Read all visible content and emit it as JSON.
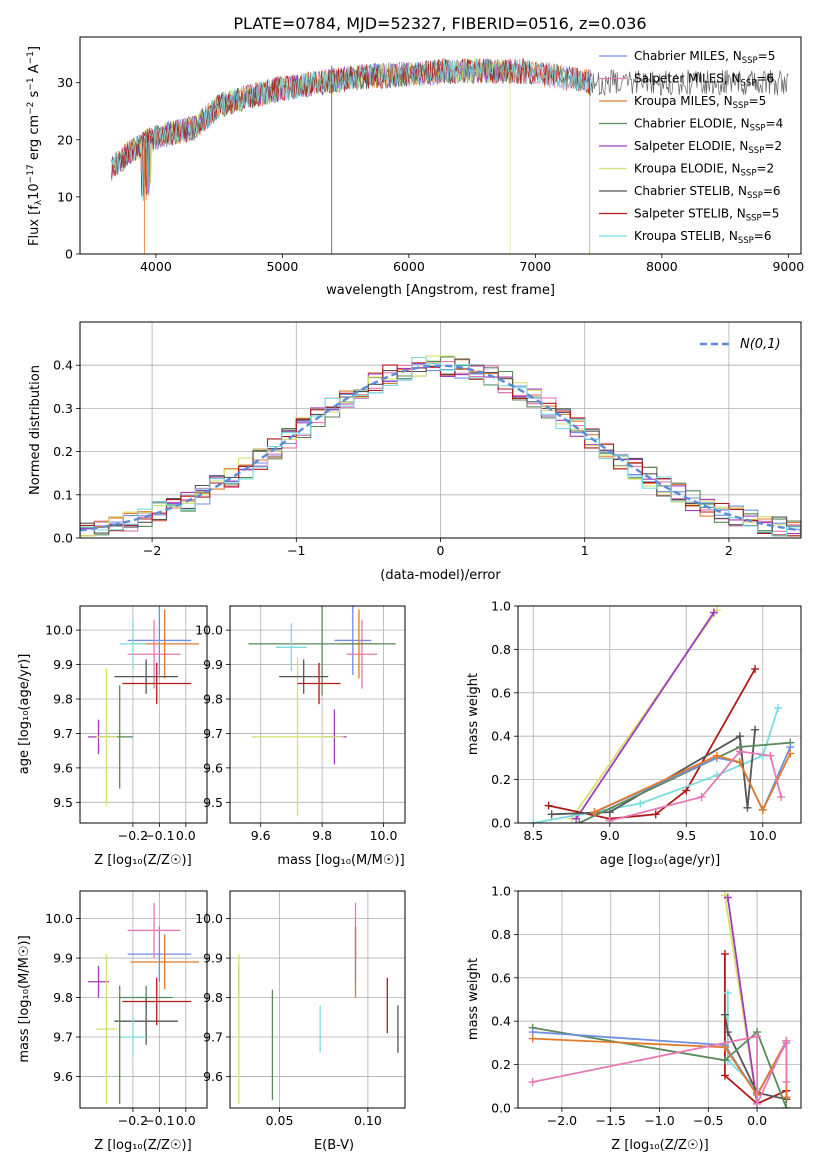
{
  "figure": {
    "title": "PLATE=0784, MJD=52327, FIBERID=0516, z=0.036",
    "colors": {
      "chabrier_miles": "#6f8fe0",
      "salpeter_miles": "#e879b5",
      "kroupa_miles": "#e07b2e",
      "chabrier_elodie": "#5a8a5a",
      "salpeter_elodie": "#a23cbc",
      "kroupa_elodie": "#d6e06e",
      "chabrier_stelib": "#555555",
      "salpeter_stelib": "#b01a1a",
      "kroupa_stelib": "#79dde0",
      "normal_curve": "#5b8bd9"
    }
  },
  "chart_data": [
    {
      "id": "spectrum",
      "type": "line",
      "xlabel": "wavelength [Angstrom, rest frame]",
      "ylabel": "Flux [f_λ10^-17 erg cm^-2 s^-1 A^-1]",
      "xlim": [
        3400,
        9100
      ],
      "ylim": [
        0,
        38
      ],
      "xticks": [
        4000,
        5000,
        6000,
        7000,
        8000,
        9000
      ],
      "yticks": [
        0,
        10,
        20,
        30
      ],
      "grid": false,
      "legend_position": "right",
      "continuum": {
        "x": [
          3650,
          3800,
          3950,
          4100,
          4300,
          4500,
          4800,
          5000,
          5300,
          5600,
          6000,
          6300,
          6600,
          6900,
          7200,
          7450
        ],
        "y": [
          15,
          18,
          20,
          21,
          22,
          26,
          28,
          29,
          30,
          31,
          31.5,
          32,
          32,
          32,
          31,
          30
        ]
      },
      "series": [
        {
          "name": "Chabrier MILES, N_SSP=5",
          "legend_main": "Chabrier MILES, N",
          "legend_sub": "SSP",
          "legend_tail": "=5",
          "color_key": "chabrier_miles",
          "xmax": 7450,
          "drop_at": null
        },
        {
          "name": "Salpeter MILES, N_SSP=6",
          "legend_main": "Salpeter MILES, N",
          "legend_sub": "SSP",
          "legend_tail": "=6",
          "color_key": "salpeter_miles",
          "xmax": 7450,
          "drop_at": null
        },
        {
          "name": "Kroupa MILES, N_SSP=5",
          "legend_main": "Kroupa MILES, N",
          "legend_sub": "SSP",
          "legend_tail": "=5",
          "color_key": "kroupa_miles",
          "xmax": 7430,
          "drop_at": 7430
        },
        {
          "name": "Chabrier ELODIE, N_SSP=4",
          "legend_main": "Chabrier ELODIE, N",
          "legend_sub": "SSP",
          "legend_tail": "=4",
          "color_key": "chabrier_elodie",
          "xmax": 6800,
          "drop_at": null
        },
        {
          "name": "Salpeter ELODIE, N_SSP=2",
          "legend_main": "Salpeter ELODIE, N",
          "legend_sub": "SSP",
          "legend_tail": "=2",
          "color_key": "salpeter_elodie",
          "xmax": 6800,
          "drop_at": null
        },
        {
          "name": "Kroupa ELODIE, N_SSP=2",
          "legend_main": "Kroupa ELODIE, N",
          "legend_sub": "SSP",
          "legend_tail": "=2",
          "color_key": "kroupa_elodie",
          "xmax": 6800,
          "drop_at": 6800
        },
        {
          "name": "Chabrier STELIB, N_SSP=6",
          "legend_main": "Chabrier STELIB, N",
          "legend_sub": "SSP",
          "legend_tail": "=6",
          "color_key": "chabrier_stelib",
          "xmax": 9000,
          "drop_at": null
        },
        {
          "name": "Salpeter STELIB, N_SSP=5",
          "legend_main": "Salpeter STELIB, N",
          "legend_sub": "SSP",
          "legend_tail": "=5",
          "color_key": "salpeter_stelib",
          "xmax": 7450,
          "drop_at": null
        },
        {
          "name": "Kroupa STELIB, N_SSP=6",
          "legend_main": "Kroupa STELIB, N",
          "legend_sub": "SSP",
          "legend_tail": "=6",
          "color_key": "kroupa_stelib",
          "xmax": 7450,
          "drop_at": null
        }
      ]
    },
    {
      "id": "residuals",
      "type": "histogram",
      "xlabel": "(data-model)/error",
      "ylabel": "Normed distribution",
      "xlim": [
        -2.5,
        2.5
      ],
      "ylim": [
        0,
        0.5
      ],
      "xticks": [
        -2,
        -1,
        0,
        1,
        2
      ],
      "yticks": [
        0.0,
        0.1,
        0.2,
        0.3,
        0.4
      ],
      "grid": true,
      "legend_position": "top-right",
      "bin_width": 0.1,
      "normal_curve_label": "N(0,1)"
    },
    {
      "id": "age_vs_Z",
      "type": "scatter",
      "xlabel": "Z [log10(Z/Z☉)]",
      "ylabel": "age [log10(age/yr)]",
      "xlim": [
        -0.4,
        0.08
      ],
      "ylim": [
        9.44,
        10.07
      ],
      "xticks": [
        -0.2,
        -0.1,
        0.0
      ],
      "yticks": [
        9.5,
        9.6,
        9.7,
        9.8,
        9.9,
        10.0
      ],
      "grid": true,
      "points": [
        {
          "color_key": "chabrier_miles",
          "x": -0.1,
          "xerr": 0.12,
          "y": 9.97,
          "yerr": 0.1
        },
        {
          "color_key": "salpeter_miles",
          "x": -0.12,
          "xerr": 0.1,
          "y": 9.93,
          "yerr": 0.1
        },
        {
          "color_key": "kroupa_miles",
          "x": -0.08,
          "xerr": 0.13,
          "y": 9.96,
          "yerr": 0.1
        },
        {
          "color_key": "chabrier_elodie",
          "x": -0.25,
          "xerr": 0.05,
          "y": 9.69,
          "yerr": 0.15
        },
        {
          "color_key": "salpeter_elodie",
          "x": -0.33,
          "xerr": 0.04,
          "y": 9.69,
          "yerr": 0.05
        },
        {
          "color_key": "kroupa_elodie",
          "x": -0.3,
          "xerr": 0.04,
          "y": 9.69,
          "yerr": 0.2
        },
        {
          "color_key": "chabrier_stelib",
          "x": -0.15,
          "xerr": 0.12,
          "y": 9.865,
          "yerr": 0.05
        },
        {
          "color_key": "salpeter_stelib",
          "x": -0.11,
          "xerr": 0.13,
          "y": 9.845,
          "yerr": 0.06
        },
        {
          "color_key": "kroupa_stelib",
          "x": -0.2,
          "xerr": 0.05,
          "y": 9.96,
          "yerr": 0.07
        }
      ]
    },
    {
      "id": "age_vs_mass",
      "type": "scatter",
      "xlabel": "mass [log10(M/M☉)]",
      "ylabel": "",
      "xlim": [
        9.5,
        10.07
      ],
      "ylim": [
        9.44,
        10.07
      ],
      "xticks": [
        9.6,
        9.8,
        10.0
      ],
      "yticks": [
        9.5,
        9.6,
        9.7,
        9.8,
        9.9,
        10.0
      ],
      "grid": true,
      "points": [
        {
          "color_key": "chabrier_miles",
          "x": 9.9,
          "xerr": 0.06,
          "y": 9.97,
          "yerr": 0.1
        },
        {
          "color_key": "salpeter_miles",
          "x": 9.93,
          "xerr": 0.05,
          "y": 9.93,
          "yerr": 0.1
        },
        {
          "color_key": "kroupa_miles",
          "x": 9.92,
          "xerr": 0.06,
          "y": 9.96,
          "yerr": 0.1
        },
        {
          "color_key": "chabrier_elodie",
          "x": 9.8,
          "xerr": 0.24,
          "y": 9.96,
          "yerr": 0.15
        },
        {
          "color_key": "salpeter_elodie",
          "x": 9.84,
          "xerr": 0.04,
          "y": 9.69,
          "yerr": 0.08
        },
        {
          "color_key": "kroupa_elodie",
          "x": 9.72,
          "xerr": 0.15,
          "y": 9.69,
          "yerr": 0.23
        },
        {
          "color_key": "chabrier_stelib",
          "x": 9.74,
          "xerr": 0.08,
          "y": 9.865,
          "yerr": 0.05
        },
        {
          "color_key": "salpeter_stelib",
          "x": 9.79,
          "xerr": 0.07,
          "y": 9.845,
          "yerr": 0.06
        },
        {
          "color_key": "kroupa_stelib",
          "x": 9.7,
          "xerr": 0.05,
          "y": 9.95,
          "yerr": 0.07
        }
      ]
    },
    {
      "id": "weight_vs_age",
      "type": "line",
      "xlabel": "age [log10(age/yr)]",
      "ylabel": "mass weight",
      "xlim": [
        8.4,
        10.25
      ],
      "ylim": [
        0,
        1
      ],
      "xticks": [
        8.5,
        9.0,
        9.5,
        10.0
      ],
      "yticks": [
        0.0,
        0.2,
        0.4,
        0.6,
        0.8,
        1.0
      ],
      "grid": true,
      "series": [
        {
          "color_key": "kroupa_elodie",
          "x": [
            8.75,
            9.7
          ],
          "y": [
            0.02,
            0.98
          ]
        },
        {
          "color_key": "salpeter_elodie",
          "x": [
            8.78,
            9.68
          ],
          "y": [
            0.02,
            0.97
          ]
        },
        {
          "color_key": "salpeter_stelib",
          "x": [
            8.6,
            9.0,
            9.3,
            9.5,
            9.95
          ],
          "y": [
            0.08,
            0.02,
            0.04,
            0.15,
            0.71
          ]
        },
        {
          "color_key": "kroupa_stelib",
          "x": [
            8.5,
            9.2,
            9.7,
            10.0,
            10.1
          ],
          "y": [
            0.0,
            0.09,
            0.22,
            0.31,
            0.53
          ]
        },
        {
          "color_key": "chabrier_stelib",
          "x": [
            8.62,
            9.0,
            9.85,
            9.9,
            9.95
          ],
          "y": [
            0.04,
            0.05,
            0.4,
            0.07,
            0.43
          ]
        },
        {
          "color_key": "chabrier_elodie",
          "x": [
            8.8,
            9.85,
            10.18
          ],
          "y": [
            0.0,
            0.35,
            0.37
          ]
        },
        {
          "color_key": "chabrier_miles",
          "x": [
            8.9,
            9.7,
            9.85,
            10.0,
            10.18
          ],
          "y": [
            0.05,
            0.3,
            0.28,
            0.06,
            0.35
          ]
        },
        {
          "color_key": "kroupa_miles",
          "x": [
            8.9,
            9.7,
            9.85,
            10.0,
            10.18
          ],
          "y": [
            0.05,
            0.31,
            0.28,
            0.06,
            0.32
          ]
        },
        {
          "color_key": "salpeter_miles",
          "x": [
            9.0,
            9.6,
            9.85,
            10.05,
            10.12
          ],
          "y": [
            0.01,
            0.12,
            0.33,
            0.31,
            0.12
          ]
        }
      ]
    },
    {
      "id": "mass_vs_Z",
      "type": "scatter",
      "xlabel": "Z [log10(Z/Z☉)]",
      "ylabel": "mass [log10(M/M☉)]",
      "xlim": [
        -0.4,
        0.08
      ],
      "ylim": [
        9.52,
        10.07
      ],
      "xticks": [
        -0.2,
        -0.1,
        0.0
      ],
      "yticks": [
        9.6,
        9.7,
        9.8,
        9.9,
        10.0
      ],
      "grid": true,
      "points": [
        {
          "color_key": "chabrier_miles",
          "x": -0.1,
          "xerr": 0.12,
          "y": 9.91,
          "yerr": 0.07
        },
        {
          "color_key": "salpeter_miles",
          "x": -0.12,
          "xerr": 0.1,
          "y": 9.97,
          "yerr": 0.07
        },
        {
          "color_key": "kroupa_miles",
          "x": -0.08,
          "xerr": 0.13,
          "y": 9.89,
          "yerr": 0.07
        },
        {
          "color_key": "chabrier_elodie",
          "x": -0.15,
          "xerr": 0.1,
          "y": 9.8,
          "yerr": 0.03
        },
        {
          "color_key": "salpeter_elodie",
          "x": -0.33,
          "xerr": 0.04,
          "y": 9.84,
          "yerr": 0.04
        },
        {
          "color_key": "kroupa_elodie",
          "x": -0.3,
          "xerr": 0.04,
          "y": 9.72,
          "yerr": 0.19
        },
        {
          "color_key": "chabrier_stelib",
          "x": -0.15,
          "xerr": 0.12,
          "y": 9.74,
          "yerr": 0.06
        },
        {
          "color_key": "salpeter_stelib",
          "x": -0.11,
          "xerr": 0.13,
          "y": 9.79,
          "yerr": 0.06
        },
        {
          "color_key": "kroupa_stelib",
          "x": -0.2,
          "xerr": 0.05,
          "y": 9.7,
          "yerr": 0.05
        },
        {
          "color_key": "chabrier_elodie",
          "x": -0.25,
          "xerr": 0.0,
          "y": 9.68,
          "yerr": 0.15
        }
      ]
    },
    {
      "id": "mass_vs_ebv",
      "type": "scatter",
      "xlabel": "E(B-V)",
      "ylabel": "",
      "xlim": [
        0.022,
        0.121
      ],
      "ylim": [
        9.52,
        10.07
      ],
      "xticks": [
        0.05,
        0.1
      ],
      "yticks": [
        9.6,
        9.7,
        9.8,
        9.9,
        10.0
      ],
      "grid": true,
      "points": [
        {
          "color_key": "chabrier_miles",
          "x": 0.093,
          "xerr": 0.0,
          "y": 9.91,
          "yerr": 0.07
        },
        {
          "color_key": "salpeter_miles",
          "x": 0.093,
          "xerr": 0.0,
          "y": 9.97,
          "yerr": 0.07
        },
        {
          "color_key": "kroupa_miles",
          "x": 0.093,
          "xerr": 0.0,
          "y": 9.89,
          "yerr": 0.09
        },
        {
          "color_key": "chabrier_elodie",
          "x": 0.046,
          "xerr": 0.0,
          "y": 9.68,
          "yerr": 0.14
        },
        {
          "color_key": "salpeter_elodie",
          "x": 0.027,
          "xerr": 0.0,
          "y": 9.84,
          "yerr": 0.04
        },
        {
          "color_key": "kroupa_elodie",
          "x": 0.027,
          "xerr": 0.0,
          "y": 9.72,
          "yerr": 0.19
        },
        {
          "color_key": "chabrier_stelib",
          "x": 0.117,
          "xerr": 0.0,
          "y": 9.72,
          "yerr": 0.06
        },
        {
          "color_key": "salpeter_stelib",
          "x": 0.111,
          "xerr": 0.0,
          "y": 9.78,
          "yerr": 0.07
        },
        {
          "color_key": "kroupa_stelib",
          "x": 0.073,
          "xerr": 0.0,
          "y": 9.72,
          "yerr": 0.06
        }
      ]
    },
    {
      "id": "weight_vs_Z",
      "type": "line",
      "xlabel": "Z [log10(Z/Z☉)]",
      "ylabel": "mass weight",
      "xlim": [
        -2.45,
        0.45
      ],
      "ylim": [
        0,
        1
      ],
      "xticks": [
        -2.0,
        -1.5,
        -1.0,
        -0.5,
        0.0
      ],
      "yticks": [
        0.0,
        0.2,
        0.4,
        0.6,
        0.8,
        1.0
      ],
      "grid": true,
      "series": [
        {
          "color_key": "kroupa_elodie",
          "x": [
            -0.33,
            0.0
          ],
          "y": [
            0.98,
            0.02
          ]
        },
        {
          "color_key": "salpeter_elodie",
          "x": [
            -0.3,
            0.0
          ],
          "y": [
            0.97,
            0.02
          ]
        },
        {
          "color_key": "salpeter_stelib",
          "x": [
            -0.33,
            -0.33,
            0.0,
            0.3,
            0.3
          ],
          "y": [
            0.71,
            0.15,
            0.02,
            0.08,
            0.04
          ]
        },
        {
          "color_key": "kroupa_stelib",
          "x": [
            -0.3,
            -0.3,
            0.0,
            0.0
          ],
          "y": [
            0.53,
            0.22,
            0.09,
            0.0
          ]
        },
        {
          "color_key": "chabrier_stelib",
          "x": [
            -0.33,
            -0.3,
            0.0,
            0.3,
            0.3
          ],
          "y": [
            0.43,
            0.35,
            0.07,
            0.04,
            0.05
          ]
        },
        {
          "color_key": "chabrier_elodie",
          "x": [
            -2.3,
            -0.33,
            0.0,
            0.3
          ],
          "y": [
            0.37,
            0.22,
            0.35,
            0.0
          ]
        },
        {
          "color_key": "chabrier_miles",
          "x": [
            -2.3,
            -0.33,
            0.0,
            0.3
          ],
          "y": [
            0.35,
            0.29,
            0.06,
            0.3
          ]
        },
        {
          "color_key": "kroupa_miles",
          "x": [
            -2.3,
            -0.33,
            0.0,
            0.3,
            0.3
          ],
          "y": [
            0.32,
            0.28,
            0.06,
            0.31,
            0.05
          ]
        },
        {
          "color_key": "salpeter_miles",
          "x": [
            -2.3,
            0.0,
            0.0,
            0.3,
            0.3
          ],
          "y": [
            0.12,
            0.33,
            0.02,
            0.31,
            0.12
          ]
        }
      ]
    }
  ]
}
